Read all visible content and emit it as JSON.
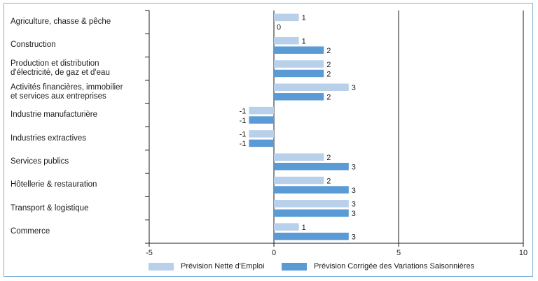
{
  "chart_data": {
    "type": "bar",
    "orientation": "horizontal",
    "categories": [
      [
        "Agriculture, chasse & pêche"
      ],
      [
        "Construction"
      ],
      [
        "Production et distribution",
        "d'électricité, de gaz et d'eau"
      ],
      [
        "Activités financières, immobilier",
        "et services aux entreprises"
      ],
      [
        "Industrie manufacturière"
      ],
      [
        "Industries extractives"
      ],
      [
        "Services publics"
      ],
      [
        "Hôtellerie & restauration"
      ],
      [
        "Transport & logistique"
      ],
      [
        "Commerce"
      ]
    ],
    "series": [
      {
        "name": "Prévision Nette d'Emploi",
        "color": "#b8d0ea",
        "values": [
          1,
          1,
          2,
          3,
          -1,
          -1,
          2,
          2,
          3,
          1
        ]
      },
      {
        "name": "Prévision Corrigée des Variations Saisonnières",
        "color": "#5b9bd5",
        "values": [
          0,
          2,
          2,
          2,
          -1,
          -1,
          3,
          3,
          3,
          3
        ]
      }
    ],
    "xlim": [
      -5,
      10
    ],
    "xticks": [
      -5,
      0,
      5,
      10
    ],
    "grid": "vertical lines at 5 and 10",
    "legend_position": "bottom"
  }
}
